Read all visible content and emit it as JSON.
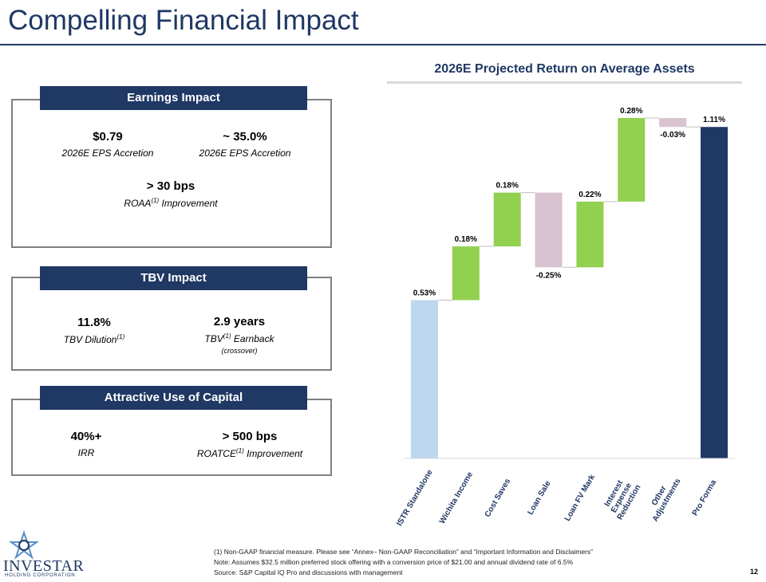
{
  "title": "Compelling Financial Impact",
  "chart_data": {
    "type": "waterfall",
    "title": "2026E Projected Return on Average Assets",
    "categories": [
      "ISTR Standalone",
      "Wichita Income",
      "Cost Saves",
      "Loan Sale",
      "Loan FV Mark",
      "Interest Expense Reduction",
      "Other Adjustments",
      "Pro Forma"
    ],
    "values": [
      0.53,
      0.18,
      0.18,
      -0.25,
      0.22,
      0.28,
      -0.03,
      1.11
    ],
    "value_labels": [
      "0.53%",
      "0.18%",
      "0.18%",
      "-0.25%",
      "0.22%",
      "0.28%",
      "-0.03%",
      "1.11%"
    ],
    "colors": {
      "start": "#bdd7ee",
      "increase": "#92d050",
      "decrease": "#d9c3d0",
      "total": "#1f3864"
    }
  },
  "panels": [
    {
      "title": "Earnings Impact",
      "items": [
        {
          "value": "$0.79",
          "label": "2026E  EPS Accretion"
        },
        {
          "value": "~ 35.0%",
          "label": "2026E  EPS Accretion"
        },
        {
          "value": "> 30 bps",
          "label": "ROAA",
          "sup": "(1)",
          "suffix": " Improvement"
        }
      ]
    },
    {
      "title": "TBV Impact",
      "items": [
        {
          "value": "11.8%",
          "label": "TBV Dilution",
          "sup": "(1)"
        },
        {
          "value": "2.9 years",
          "label": "TBV",
          "sup": "(1)",
          "suffix": " Earnback",
          "note": "(crossover)"
        }
      ]
    },
    {
      "title": "Attractive Use of Capital",
      "items": [
        {
          "value": "40%+",
          "label": "IRR"
        },
        {
          "value": "> 500 bps",
          "label": "ROATCE",
          "sup": "(1)",
          "suffix": " Improvement"
        }
      ]
    }
  ],
  "footnotes": [
    "(1) Non-GAAP financial measure. Please see “Annex– Non-GAAP Reconciliation” and “Important Information and Disclaimers”",
    "Note: Assumes $32.5 million preferred stock offering with a conversion price of $21.00 and annual dividend rate of 6.5%",
    "Source: S&P Capital IQ Pro and discussions with management"
  ],
  "page_number": "12",
  "logo": {
    "name": "INVESTAR",
    "subtitle": "HOLDING CORPORATION"
  }
}
